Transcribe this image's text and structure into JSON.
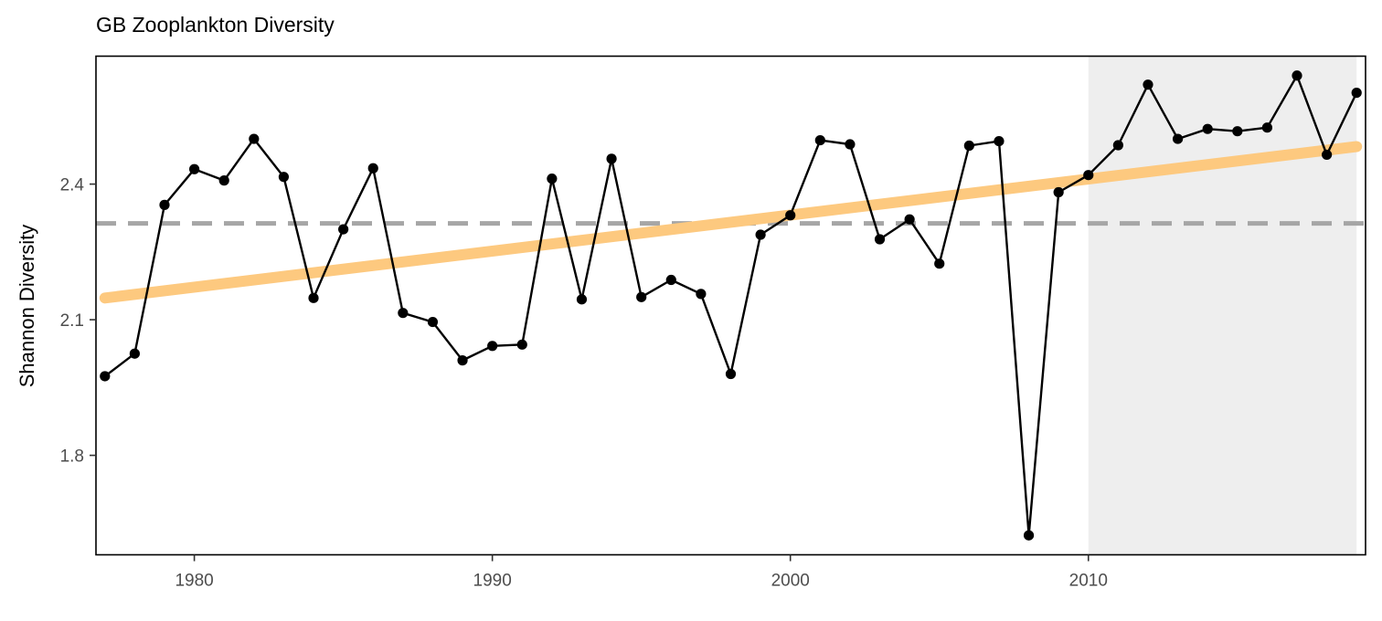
{
  "chart_data": {
    "type": "line",
    "title": "GB Zooplankton Diversity",
    "xlabel": "",
    "ylabel": "Shannon Diversity",
    "xlim": [
      1976.7,
      2019.3
    ],
    "ylim": [
      1.58,
      2.683
    ],
    "x_ticks": [
      1980,
      1990,
      2000,
      2010
    ],
    "y_ticks": [
      1.8,
      2.1,
      2.4
    ],
    "y_tick_labels": [
      "1.8",
      "2.1",
      "2.4"
    ],
    "grid": false,
    "legend": "none",
    "highlight_region": {
      "x_start": 2010,
      "x_end": 2019,
      "color": "#eeeeee"
    },
    "mean_line": {
      "y": 2.313,
      "color": "#a6a6a6",
      "style": "dashed"
    },
    "trend_line": {
      "x": [
        1977,
        2019
      ],
      "y": [
        2.148,
        2.483
      ],
      "color": "#fdc97f"
    },
    "series": [
      {
        "x": [
          1977,
          1978,
          1979,
          1980,
          1981,
          1982,
          1983,
          1984,
          1985,
          1986,
          1987,
          1988,
          1989,
          1990,
          1991,
          1992,
          1993,
          1994,
          1995,
          1996,
          1997,
          1998,
          1999,
          2000,
          2001,
          2002,
          2003,
          2004,
          2005,
          2006,
          2007,
          2008,
          2009,
          2010,
          2011,
          2012,
          2013,
          2014,
          2015,
          2016,
          2017,
          2018,
          2019
        ],
        "values": [
          1.975,
          2.025,
          2.354,
          2.433,
          2.408,
          2.5,
          2.416,
          2.148,
          2.3,
          2.435,
          2.115,
          2.095,
          2.01,
          2.042,
          2.045,
          2.412,
          2.145,
          2.456,
          2.15,
          2.188,
          2.157,
          1.98,
          2.288,
          2.331,
          2.497,
          2.488,
          2.278,
          2.322,
          2.224,
          2.485,
          2.495,
          1.623,
          2.382,
          2.42,
          2.486,
          2.62,
          2.5,
          2.522,
          2.517,
          2.525,
          2.64,
          2.465,
          2.602
        ],
        "color": "#000000"
      }
    ]
  }
}
